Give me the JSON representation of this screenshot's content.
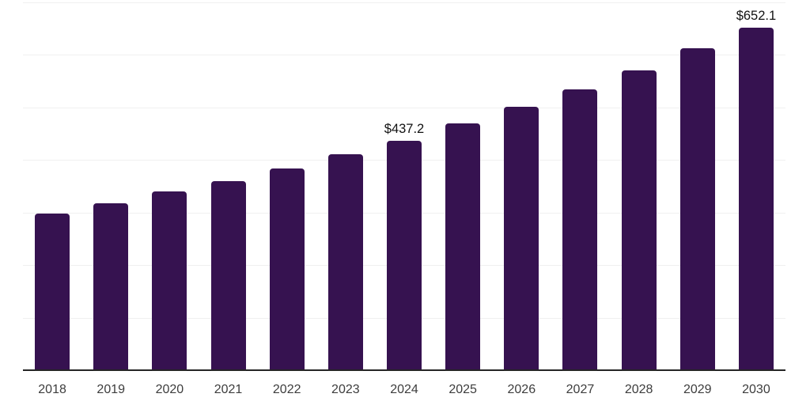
{
  "chart_data": {
    "type": "bar",
    "title": "",
    "xlabel": "",
    "ylabel": "",
    "categories": [
      "2018",
      "2019",
      "2020",
      "2021",
      "2022",
      "2023",
      "2024",
      "2025",
      "2026",
      "2027",
      "2028",
      "2029",
      "2030"
    ],
    "values": [
      298,
      317,
      340,
      360,
      384,
      411,
      437.2,
      469,
      501,
      534,
      571,
      613,
      652.1
    ],
    "bar_value_labels": [
      "",
      "",
      "",
      "",
      "",
      "",
      "$437.2",
      "",
      "",
      "",
      "",
      "",
      "$652.1"
    ],
    "ylim": [
      0,
      700
    ],
    "gridline_step": 100,
    "grid": "horizontal",
    "legend_position": "none",
    "y_axis_tick_labels_visible": false,
    "colors": {
      "bar": "#361250",
      "axis_line": "#262626",
      "gridline": "#f0f0f0",
      "tick_label": "#3d3d3d",
      "value_label": "#121212",
      "background": "#ffffff"
    }
  }
}
